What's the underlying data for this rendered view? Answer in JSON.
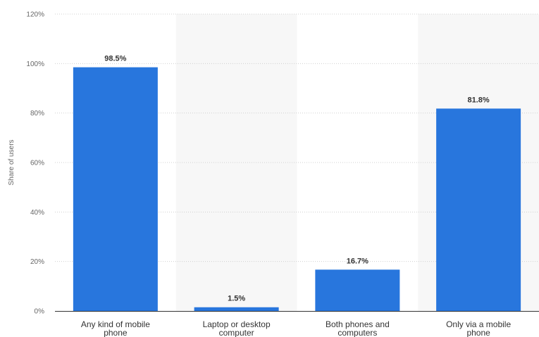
{
  "chart_data": {
    "type": "bar",
    "categories": [
      "Any kind of mobile phone",
      "Laptop or desktop computer",
      "Both phones and computers",
      "Only via a mobile phone"
    ],
    "values": [
      98.5,
      1.5,
      16.7,
      81.8
    ],
    "data_labels": [
      "98.5%",
      "1.5%",
      "16.7%",
      "81.8%"
    ],
    "title": "",
    "xlabel": "",
    "ylabel": "Share of users",
    "ylim": [
      0,
      120
    ],
    "yticks": [
      0,
      20,
      40,
      60,
      80,
      100,
      120
    ],
    "ytick_labels": [
      "0%",
      "20%",
      "40%",
      "60%",
      "80%",
      "100%",
      "120%"
    ],
    "grid": true,
    "legend": "none",
    "colors": {
      "bar": "#2876dd",
      "alt_band": "#f7f7f7",
      "grid": "#d0d0d0",
      "axis": "#333333"
    }
  }
}
